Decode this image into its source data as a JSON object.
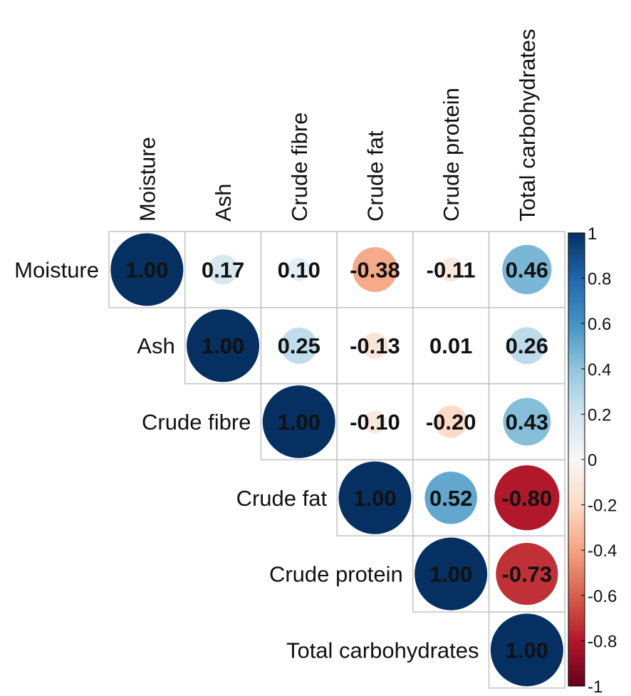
{
  "chart_data": {
    "type": "heatmap",
    "subtype": "correlation-matrix-upper-triangle-circles",
    "variables": [
      "Moisture",
      "Ash",
      "Crude fibre",
      "Crude fat",
      "Crude protein",
      "Total carbohydrates"
    ],
    "matrix": [
      [
        1.0,
        0.17,
        0.1,
        -0.38,
        -0.11,
        0.46
      ],
      [
        null,
        1.0,
        0.25,
        -0.13,
        0.01,
        0.26
      ],
      [
        null,
        null,
        1.0,
        -0.1,
        -0.2,
        0.43
      ],
      [
        null,
        null,
        null,
        1.0,
        0.52,
        -0.8
      ],
      [
        null,
        null,
        null,
        null,
        1.0,
        -0.73
      ],
      [
        null,
        null,
        null,
        null,
        null,
        1.0
      ]
    ],
    "value_labels": [
      [
        "1.00",
        "0.17",
        "0.10",
        "-0.38",
        "-0.11",
        "0.46"
      ],
      [
        null,
        "1.00",
        "0.25",
        "-0.13",
        "0.01",
        "0.26"
      ],
      [
        null,
        null,
        "1.00",
        "-0.10",
        "-0.20",
        "0.43"
      ],
      [
        null,
        null,
        null,
        "1.00",
        "0.52",
        "-0.80"
      ],
      [
        null,
        null,
        null,
        null,
        "1.00",
        "-0.73"
      ],
      [
        null,
        null,
        null,
        null,
        null,
        "1.00"
      ]
    ],
    "colorbar": {
      "range": [
        -1,
        1
      ],
      "ticks": [
        1,
        0.8,
        0.6,
        0.4,
        0.2,
        0,
        -0.2,
        -0.4,
        -0.6,
        -0.8,
        -1
      ],
      "tick_labels": [
        "1",
        "0.8",
        "0.6",
        "0.4",
        "0.2",
        "0",
        "-0.2",
        "-0.4",
        "-0.6",
        "-0.8",
        "-1"
      ],
      "colors": {
        "negative_strong": "#67001f",
        "negative_mid": "#d6604d",
        "neutral": "#f7f7f7",
        "positive_mid": "#4393c3",
        "positive_strong": "#053061"
      }
    },
    "grid": true,
    "legend": "right"
  }
}
